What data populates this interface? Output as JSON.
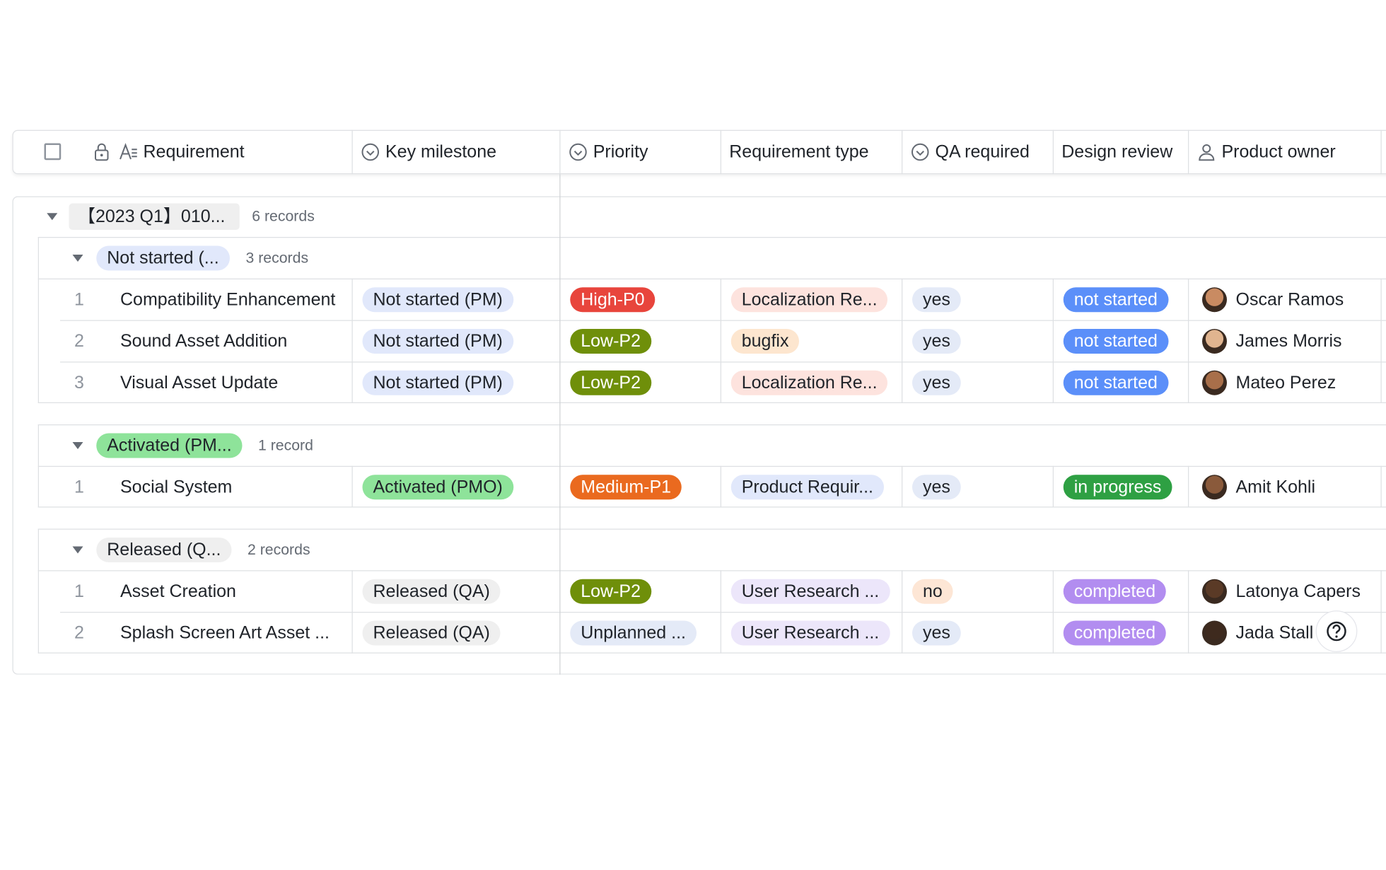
{
  "columns": [
    "Requirement",
    "Key milestone",
    "Priority",
    "Requirement type",
    "QA required",
    "Design review",
    "Product owner"
  ],
  "group": {
    "label": "【2023 Q1】010...",
    "count": "6 records",
    "subgroups": [
      {
        "label": "Not started (...",
        "bg": "#e1e8fb",
        "fg": "#1f2329",
        "count": "3 records",
        "rows": [
          {
            "index": 1,
            "requirement": "Compatibility Enhancement",
            "milestone": {
              "text": "Not started (PM)",
              "bg": "#e1e8fb",
              "fg": "#1f2329"
            },
            "priority": {
              "text": "High-P0",
              "bg": "#e8453c",
              "fg": "#ffffff"
            },
            "type": {
              "text": "Localization Re...",
              "bg": "#fde3de",
              "fg": "#1f2329"
            },
            "qa": {
              "text": "yes",
              "bg": "#e4eaf7",
              "fg": "#1f2329"
            },
            "design": {
              "text": "not started",
              "bg": "#5b8ff9",
              "fg": "#ffffff"
            },
            "owner": "Oscar Ramos"
          },
          {
            "index": 2,
            "requirement": "Sound Asset Addition",
            "milestone": {
              "text": "Not started (PM)",
              "bg": "#e1e8fb",
              "fg": "#1f2329"
            },
            "priority": {
              "text": "Low-P2",
              "bg": "#6f8f0a",
              "fg": "#ffffff"
            },
            "type": {
              "text": "bugfix",
              "bg": "#fde6cf",
              "fg": "#1f2329"
            },
            "qa": {
              "text": "yes",
              "bg": "#e4eaf7",
              "fg": "#1f2329"
            },
            "design": {
              "text": "not started",
              "bg": "#5b8ff9",
              "fg": "#ffffff"
            },
            "owner": "James Morris"
          },
          {
            "index": 3,
            "requirement": "Visual Asset Update",
            "milestone": {
              "text": "Not started (PM)",
              "bg": "#e1e8fb",
              "fg": "#1f2329"
            },
            "priority": {
              "text": "Low-P2",
              "bg": "#6f8f0a",
              "fg": "#ffffff"
            },
            "type": {
              "text": "Localization Re...",
              "bg": "#fde3de",
              "fg": "#1f2329"
            },
            "qa": {
              "text": "yes",
              "bg": "#e4eaf7",
              "fg": "#1f2329"
            },
            "design": {
              "text": "not started",
              "bg": "#5b8ff9",
              "fg": "#ffffff"
            },
            "owner": "Mateo Perez"
          }
        ]
      },
      {
        "label": "Activated (PM...",
        "bg": "#8ee39a",
        "fg": "#1f2329",
        "count": "1 record",
        "rows": [
          {
            "index": 1,
            "requirement": "Social System",
            "milestone": {
              "text": "Activated (PMO)",
              "bg": "#8ee39a",
              "fg": "#1f2329"
            },
            "priority": {
              "text": "Medium-P1",
              "bg": "#ea6a1f",
              "fg": "#ffffff"
            },
            "type": {
              "text": "Product Requir...",
              "bg": "#e1e8fb",
              "fg": "#1f2329"
            },
            "qa": {
              "text": "yes",
              "bg": "#e4eaf7",
              "fg": "#1f2329"
            },
            "design": {
              "text": "in progress",
              "bg": "#2ea043",
              "fg": "#ffffff"
            },
            "owner": "Amit Kohli"
          }
        ]
      },
      {
        "label": "Released (Q...",
        "bg": "#efefef",
        "fg": "#1f2329",
        "count": "2 records",
        "rows": [
          {
            "index": 1,
            "requirement": "Asset Creation",
            "milestone": {
              "text": "Released (QA)",
              "bg": "#efefef",
              "fg": "#1f2329"
            },
            "priority": {
              "text": "Low-P2",
              "bg": "#6f8f0a",
              "fg": "#ffffff"
            },
            "type": {
              "text": "User Research ...",
              "bg": "#ece6fa",
              "fg": "#1f2329"
            },
            "qa": {
              "text": "no",
              "bg": "#fde6d5",
              "fg": "#1f2329"
            },
            "design": {
              "text": "completed",
              "bg": "#b28df0",
              "fg": "#ffffff"
            },
            "owner": "Latonya Capers"
          },
          {
            "index": 2,
            "requirement": "Splash Screen Art Asset ...",
            "milestone": {
              "text": "Released (QA)",
              "bg": "#efefef",
              "fg": "#1f2329"
            },
            "priority": {
              "text": "Unplanned ...",
              "bg": "#e4eaf7",
              "fg": "#1f2329"
            },
            "type": {
              "text": "User Research ...",
              "bg": "#ece6fa",
              "fg": "#1f2329"
            },
            "qa": {
              "text": "yes",
              "bg": "#e4eaf7",
              "fg": "#1f2329"
            },
            "design": {
              "text": "completed",
              "bg": "#b28df0",
              "fg": "#ffffff"
            },
            "owner": "Jada Stall"
          }
        ]
      }
    ]
  }
}
